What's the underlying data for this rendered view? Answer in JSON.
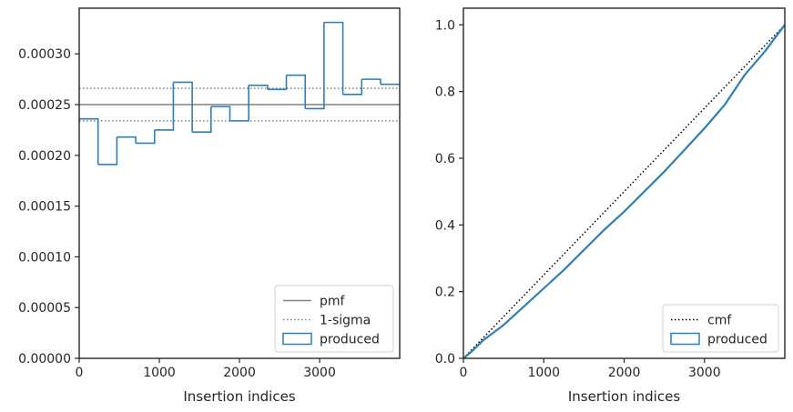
{
  "colors": {
    "hist": "#2f7fb3",
    "pmf": "#808080",
    "sigma": "#808080",
    "cmf": "#000000",
    "axis": "#262626"
  },
  "chart_data": [
    {
      "type": "histogram",
      "xlabel": "Insertion indices",
      "ylabel": "",
      "xlim": [
        0,
        3999
      ],
      "ylim": [
        0,
        0.000345
      ],
      "xticks": [
        0,
        1000,
        2000,
        3000
      ],
      "xtick_labels": [
        "0",
        "1000",
        "2000",
        "3000"
      ],
      "yticks": [
        0,
        5e-05,
        0.0001,
        0.00015,
        0.0002,
        0.00025,
        0.0003
      ],
      "ytick_labels": [
        "0.00000",
        "0.00005",
        "0.00010",
        "0.00015",
        "0.00020",
        "0.00025",
        "0.00030"
      ],
      "bin_edges": [
        0,
        235,
        470,
        705,
        940,
        1175,
        1410,
        1645,
        1880,
        2115,
        2350,
        2585,
        2820,
        3055,
        3290,
        3525,
        3760,
        3999
      ],
      "values": [
        0.000236,
        0.000191,
        0.000218,
        0.000212,
        0.000225,
        0.000272,
        0.000223,
        0.000248,
        0.000234,
        0.000269,
        0.000265,
        0.000279,
        0.000246,
        0.000331,
        0.00026,
        0.000275,
        0.00027
      ],
      "pmf": 0.00025,
      "sigma_bounds": [
        0.000234,
        0.000266
      ],
      "legend": {
        "location": "lower right",
        "entries": [
          {
            "label": "pmf",
            "style": "solid-line"
          },
          {
            "label": "1-sigma",
            "style": "dotted-line"
          },
          {
            "label": "produced",
            "style": "step-patch"
          }
        ]
      },
      "grid": false
    },
    {
      "type": "line",
      "xlabel": "Insertion indices",
      "ylabel": "",
      "xlim": [
        0,
        3999
      ],
      "ylim": [
        0,
        1.05
      ],
      "xticks": [
        0,
        1000,
        2000,
        3000
      ],
      "xtick_labels": [
        "0",
        "1000",
        "2000",
        "3000"
      ],
      "yticks": [
        0,
        0.2,
        0.4,
        0.6,
        0.8,
        1.0
      ],
      "ytick_labels": [
        "0.0",
        "0.2",
        "0.4",
        "0.6",
        "0.8",
        "1.0"
      ],
      "series": [
        {
          "name": "cmf",
          "style": "dotted",
          "x": [
            0,
            3999
          ],
          "y": [
            0,
            1.0
          ]
        },
        {
          "name": "produced",
          "style": "solid",
          "x": [
            0,
            100,
            250,
            500,
            750,
            1000,
            1250,
            1500,
            1750,
            2000,
            2250,
            2500,
            2750,
            3000,
            3250,
            3500,
            3750,
            3999
          ],
          "y": [
            0,
            0.02,
            0.055,
            0.1,
            0.155,
            0.21,
            0.265,
            0.325,
            0.385,
            0.44,
            0.5,
            0.56,
            0.625,
            0.69,
            0.76,
            0.85,
            0.92,
            1.0
          ]
        }
      ],
      "legend": {
        "location": "lower right",
        "entries": [
          {
            "label": "cmf",
            "style": "dotted-line"
          },
          {
            "label": "produced",
            "style": "step-patch"
          }
        ]
      },
      "grid": false
    }
  ]
}
